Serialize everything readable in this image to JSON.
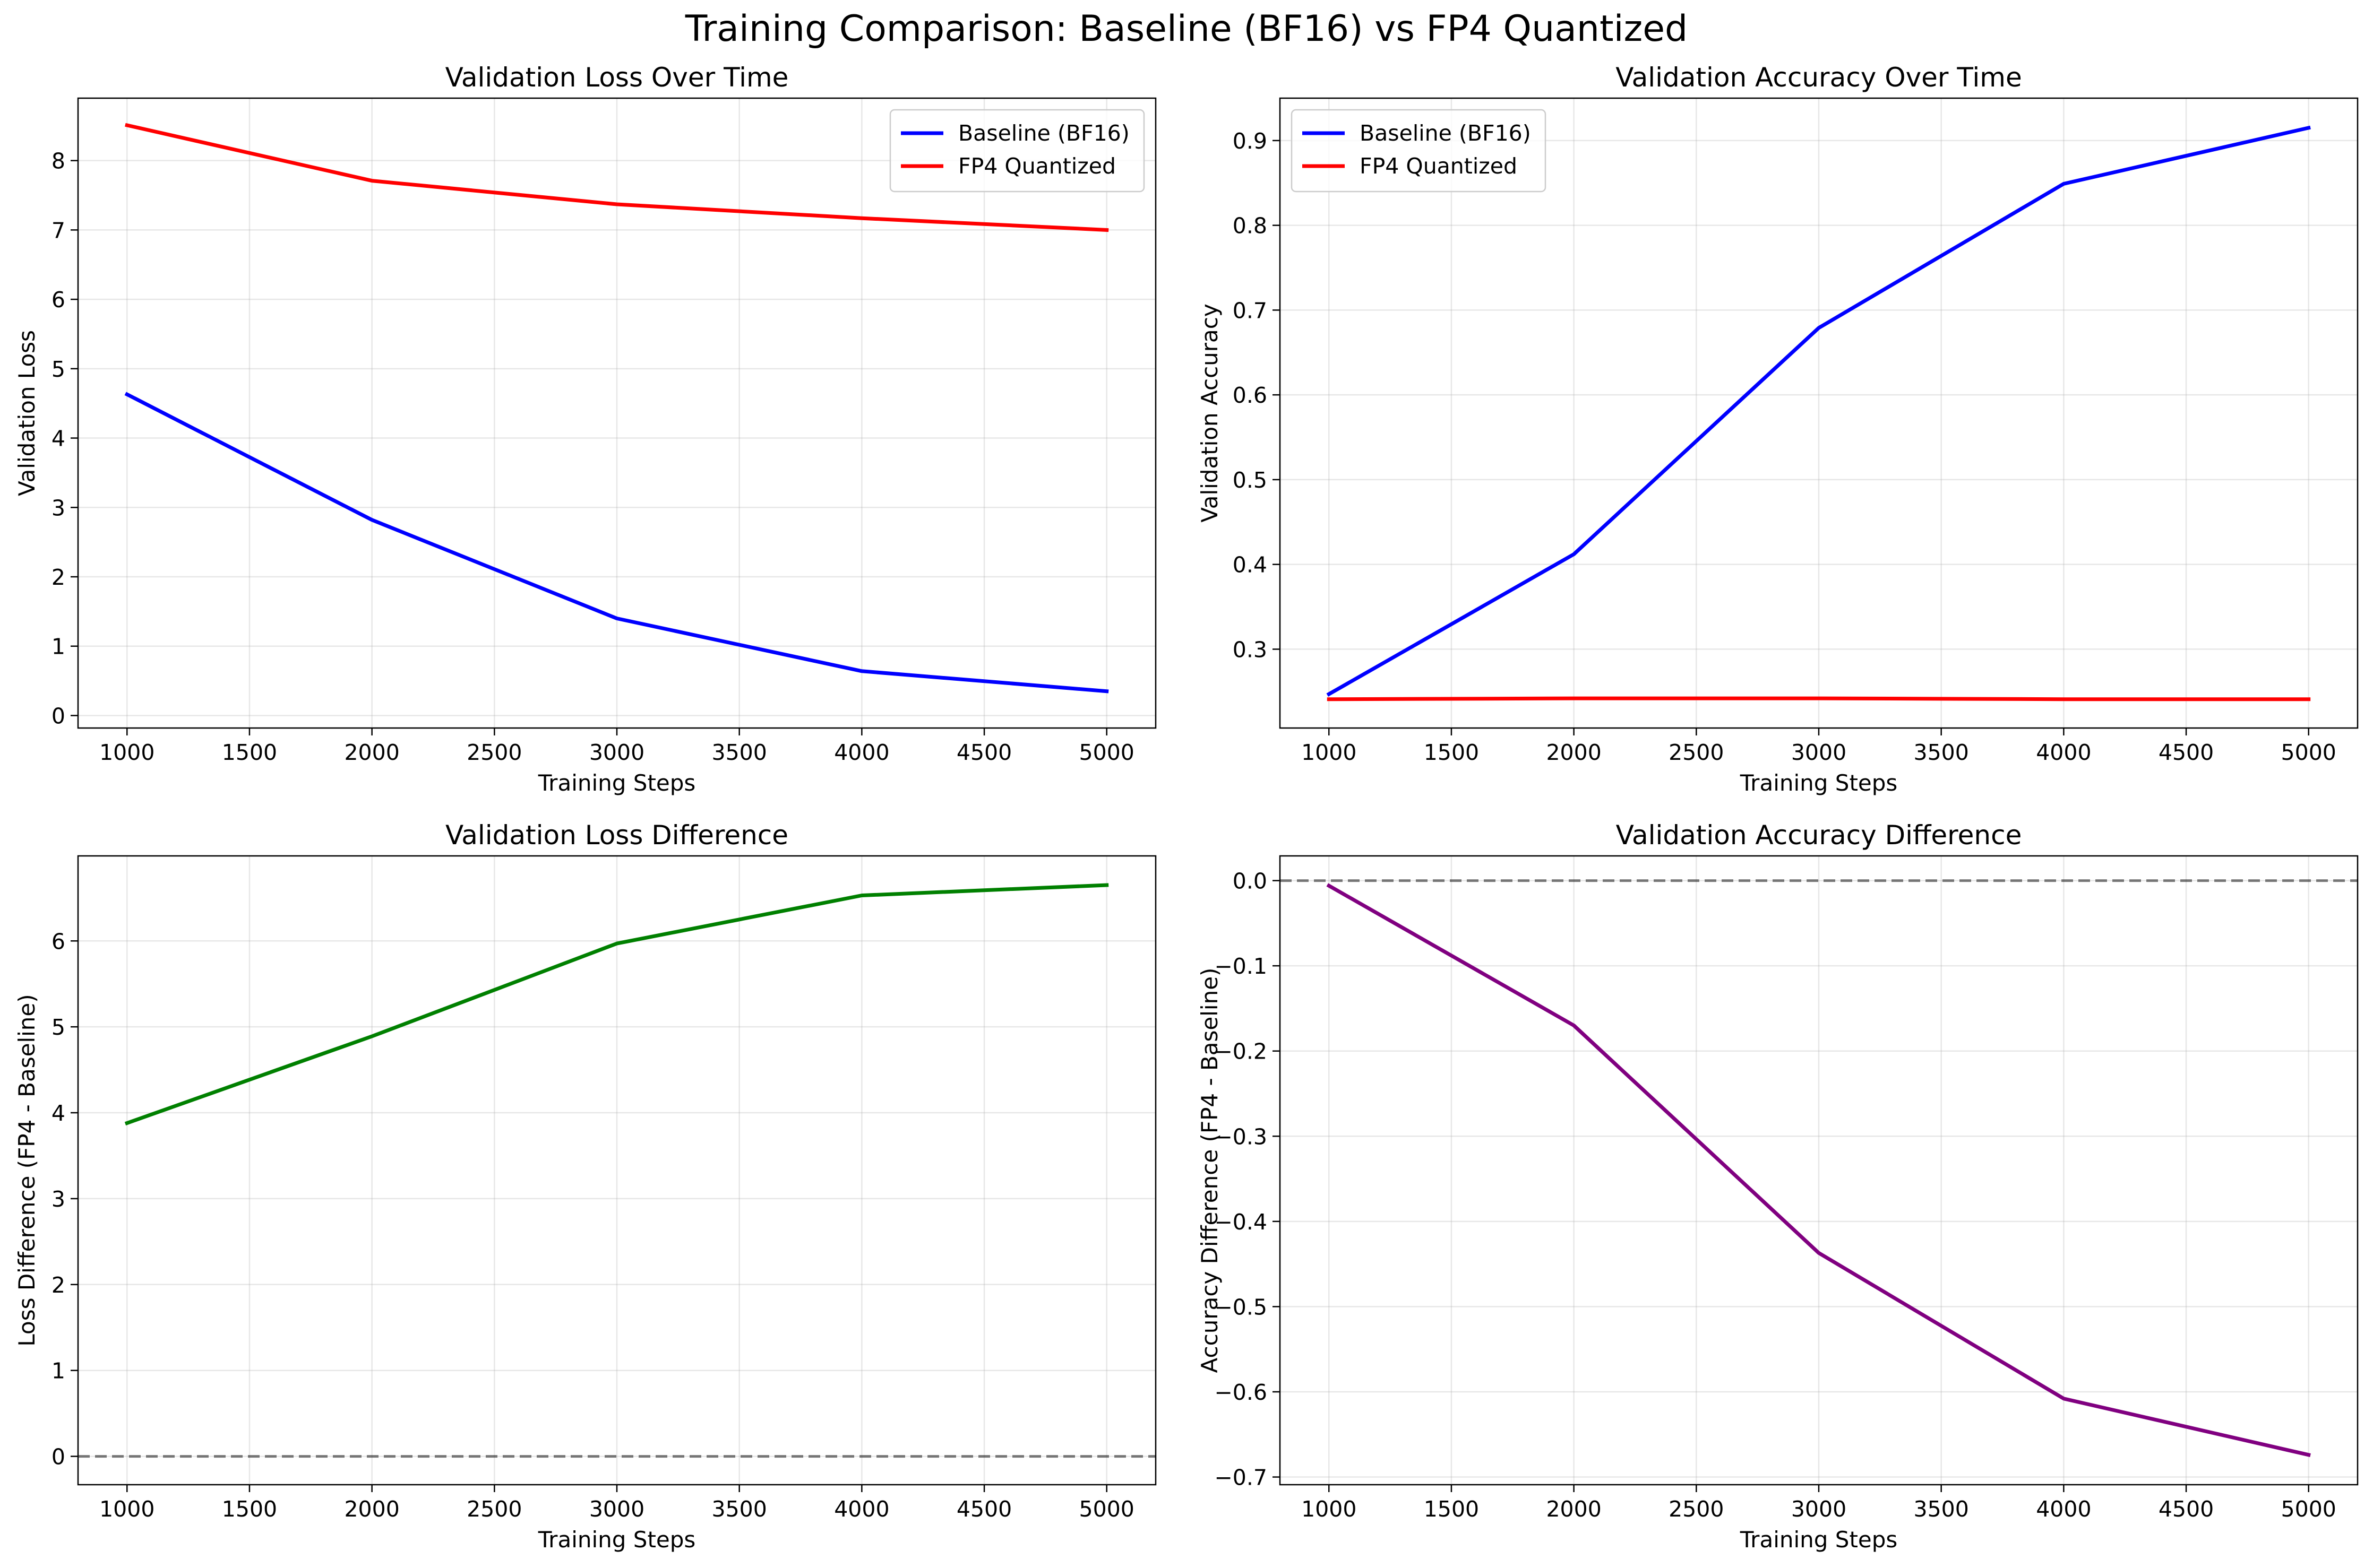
{
  "figure": {
    "title": "Training Comparison: Baseline (BF16) vs FP4 Quantized"
  },
  "chart_data": [
    {
      "id": "loss",
      "type": "line",
      "title": "Validation Loss Over Time",
      "xlabel": "Training Steps",
      "ylabel": "Validation Loss",
      "x": [
        1000,
        2000,
        3000,
        4000,
        5000
      ],
      "xlim": [
        800,
        5200
      ],
      "ylim": [
        -0.18,
        8.9
      ],
      "xticks": [
        1000,
        1500,
        2000,
        2500,
        3000,
        3500,
        4000,
        4500,
        5000
      ],
      "yticks": [
        0,
        1,
        2,
        3,
        4,
        5,
        6,
        7,
        8
      ],
      "grid": true,
      "legend": "upper-right",
      "series": [
        {
          "name": "Baseline (BF16)",
          "color": "#0000ff",
          "values": [
            4.63,
            2.82,
            1.4,
            0.64,
            0.35
          ]
        },
        {
          "name": "FP4 Quantized",
          "color": "#ff0000",
          "values": [
            8.51,
            7.71,
            7.37,
            7.17,
            7.0
          ]
        }
      ],
      "zero_line": false
    },
    {
      "id": "accuracy",
      "type": "line",
      "title": "Validation Accuracy Over Time",
      "xlabel": "Training Steps",
      "ylabel": "Validation Accuracy",
      "x": [
        1000,
        2000,
        3000,
        4000,
        5000
      ],
      "xlim": [
        800,
        5200
      ],
      "ylim": [
        0.207,
        0.95
      ],
      "xticks": [
        1000,
        1500,
        2000,
        2500,
        3000,
        3500,
        4000,
        4500,
        5000
      ],
      "yticks": [
        0.3,
        0.4,
        0.5,
        0.6,
        0.7,
        0.8,
        0.9
      ],
      "grid": true,
      "legend": "upper-left",
      "series": [
        {
          "name": "Baseline (BF16)",
          "color": "#0000ff",
          "values": [
            0.247,
            0.412,
            0.679,
            0.849,
            0.915
          ]
        },
        {
          "name": "FP4 Quantized",
          "color": "#ff0000",
          "values": [
            0.241,
            0.242,
            0.242,
            0.241,
            0.241
          ]
        }
      ],
      "zero_line": false
    },
    {
      "id": "loss-diff",
      "type": "line",
      "title": "Validation Loss Difference",
      "xlabel": "Training Steps",
      "ylabel": "Loss Difference (FP4 - Baseline)",
      "x": [
        1000,
        2000,
        3000,
        4000,
        5000
      ],
      "xlim": [
        800,
        5200
      ],
      "ylim": [
        -0.33,
        6.99
      ],
      "xticks": [
        1000,
        1500,
        2000,
        2500,
        3000,
        3500,
        4000,
        4500,
        5000
      ],
      "yticks": [
        0,
        1,
        2,
        3,
        4,
        5,
        6
      ],
      "grid": true,
      "legend": "none",
      "series": [
        {
          "name": "",
          "color": "#008000",
          "values": [
            3.88,
            4.89,
            5.97,
            6.53,
            6.65
          ]
        }
      ],
      "zero_line": true
    },
    {
      "id": "accuracy-diff",
      "type": "line",
      "title": "Validation Accuracy Difference",
      "xlabel": "Training Steps",
      "ylabel": "Accuracy Difference (FP4 - Baseline)",
      "x": [
        1000,
        2000,
        3000,
        4000,
        5000
      ],
      "xlim": [
        800,
        5200
      ],
      "ylim": [
        -0.709,
        0.029
      ],
      "xticks": [
        1000,
        1500,
        2000,
        2500,
        3000,
        3500,
        4000,
        4500,
        5000
      ],
      "yticks": [
        0.0,
        -0.1,
        -0.2,
        -0.3,
        -0.4,
        -0.5,
        -0.6,
        -0.7
      ],
      "grid": true,
      "legend": "none",
      "series": [
        {
          "name": "",
          "color": "#800080",
          "values": [
            -0.006,
            -0.17,
            -0.437,
            -0.608,
            -0.674
          ]
        }
      ],
      "zero_line": true
    }
  ]
}
